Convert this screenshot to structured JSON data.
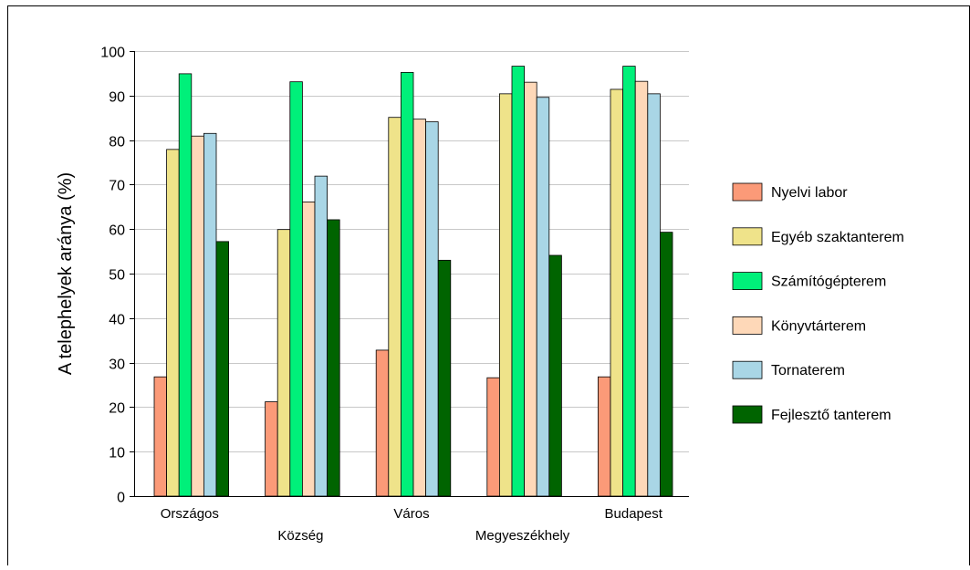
{
  "caption": "",
  "chart_data": {
    "type": "bar",
    "title": "",
    "xlabel": "",
    "ylabel": "A telephelyek aránya (%)",
    "ylim": [
      0,
      100
    ],
    "yticks": [
      0,
      10,
      20,
      30,
      40,
      50,
      60,
      70,
      80,
      90,
      100
    ],
    "grid": true,
    "legend_position": "right",
    "categories": [
      "Országos",
      "Község",
      "Város",
      "Megyeszékhely",
      "Budapest"
    ],
    "series": [
      {
        "name": "Nyelvi labor",
        "color": "#fb9a78",
        "values": [
          26.8,
          21.2,
          32.8,
          26.6,
          26.8
        ]
      },
      {
        "name": "Egyéb szaktanterem",
        "color": "#efe38a",
        "values": [
          77.9,
          59.9,
          85.1,
          90.4,
          91.4
        ]
      },
      {
        "name": "Számítógépterem",
        "color": "#00f07a",
        "values": [
          94.9,
          93.1,
          95.2,
          96.6,
          96.6
        ]
      },
      {
        "name": "Könyvtárterem",
        "color": "#fed8b8",
        "values": [
          80.9,
          66.1,
          84.7,
          93.0,
          93.2
        ]
      },
      {
        "name": "Tornaterem",
        "color": "#a9d6e6",
        "values": [
          81.5,
          71.9,
          84.1,
          89.6,
          90.4
        ]
      },
      {
        "name": "Fejlesztő tanterem",
        "color": "#006400",
        "values": [
          57.2,
          62.1,
          53.0,
          54.1,
          59.3
        ]
      }
    ]
  }
}
